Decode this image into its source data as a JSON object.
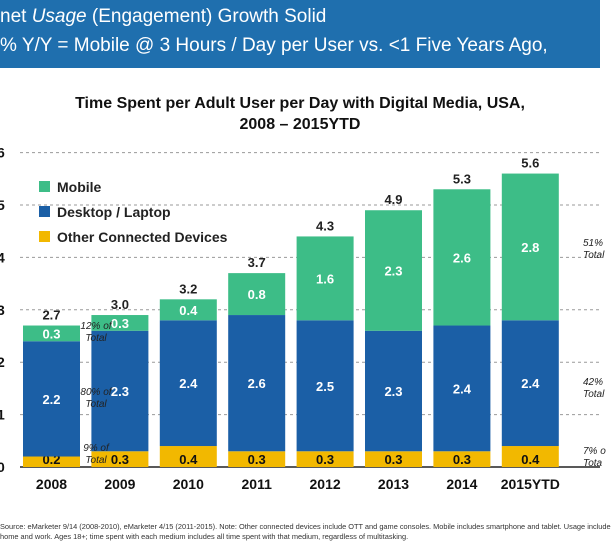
{
  "header": {
    "line1": "net Usage (Engagement) Growth Solid",
    "line1_parts": [
      "net ",
      "Usage",
      " (Engagement) Growth Solid"
    ],
    "line2": "% Y/Y = Mobile @ 3 Hours / Day per User vs. <1  Five Years Ago,"
  },
  "chart_data": {
    "type": "bar",
    "stacked": true,
    "title": "Time Spent per Adult User per Day with Digital Media, USA,",
    "title_line2": "2008 – 2015YTD",
    "categories": [
      "2008",
      "2009",
      "2010",
      "2011",
      "2012",
      "2013",
      "2014",
      "2015YTD"
    ],
    "series": [
      {
        "name": "Other Connected Devices",
        "color": "#f2b800",
        "values": [
          0.2,
          0.3,
          0.4,
          0.3,
          0.3,
          0.3,
          0.3,
          0.4
        ]
      },
      {
        "name": "Desktop / Laptop",
        "color": "#1b5fa6",
        "values": [
          2.2,
          2.3,
          2.4,
          2.6,
          2.5,
          2.3,
          2.4,
          2.4
        ]
      },
      {
        "name": "Mobile",
        "color": "#3dbd87",
        "values": [
          0.3,
          0.3,
          0.4,
          0.8,
          1.6,
          2.3,
          2.6,
          2.8
        ]
      }
    ],
    "totals": [
      "2.7",
      "3.0",
      "3.2",
      "3.7",
      "4.3",
      "4.9",
      "5.3",
      "5.6"
    ],
    "legend": [
      "Mobile",
      "Desktop / Laptop",
      "Other Connected Devices"
    ],
    "ylim": [
      0,
      6
    ],
    "y_ticks": [
      "6",
      "5",
      "4",
      "3",
      "2",
      "1",
      "0"
    ],
    "grid": true,
    "annotations": {
      "left": [
        {
          "pct": "12% of",
          "total": "Total"
        },
        {
          "pct": "80% of",
          "total": "Total"
        },
        {
          "pct": "9% of",
          "total": "Total"
        }
      ],
      "right": [
        {
          "pct": "51%",
          "total": "Total"
        },
        {
          "pct": "42%",
          "total": "Total"
        },
        {
          "pct": "7% o",
          "total": "Tota"
        }
      ]
    }
  },
  "source": {
    "line1": "Source: eMarketer 9/14 (2008-2010), eMarketer 4/15 (2011-2015). Note: Other connected devices include OTT and game consoles. Mobile includes smartphone and tablet. Usage include",
    "line2": "home and work. Ages 18+; time spent with each medium includes all time spent with that medium, regardless of multitasking."
  }
}
